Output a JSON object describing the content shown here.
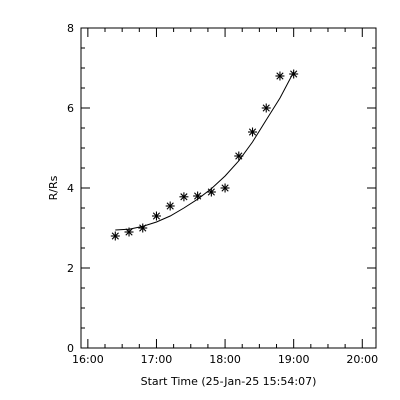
{
  "chart_data": {
    "type": "scatter",
    "title": "",
    "xlabel": "Start Time (25-Jan-25 15:54:07)",
    "ylabel": "R/Rs",
    "x_ticks": [
      "16:00",
      "17:00",
      "18:00",
      "19:00",
      "20:00"
    ],
    "y_ticks": [
      "0",
      "2",
      "4",
      "6",
      "8"
    ],
    "xlim_hours": [
      15.9,
      20.2
    ],
    "ylim": [
      0,
      8
    ],
    "x_minor_ticks_per_major": 4,
    "y_minor_ticks_per_major": 4,
    "grid": false,
    "marker": "asterisk",
    "points": {
      "x_hours": [
        16.4,
        16.6,
        16.8,
        17.0,
        17.2,
        17.4,
        17.6,
        17.8,
        18.0,
        18.2,
        18.4,
        18.6,
        18.8,
        19.0
      ],
      "y": [
        2.8,
        2.9,
        3.0,
        3.3,
        3.55,
        3.78,
        3.8,
        3.9,
        4.0,
        4.8,
        5.4,
        6.0,
        6.8,
        6.85
      ]
    },
    "fit_curve": {
      "x_hours": [
        16.4,
        16.6,
        16.8,
        17.0,
        17.2,
        17.4,
        17.6,
        17.8,
        18.0,
        18.2,
        18.4,
        18.6,
        18.8,
        19.0
      ],
      "y": [
        2.95,
        2.97,
        3.04,
        3.15,
        3.3,
        3.5,
        3.72,
        3.98,
        4.3,
        4.68,
        5.15,
        5.7,
        6.25,
        6.9
      ]
    },
    "colors": {
      "axis": "#000000",
      "marker": "#000000",
      "line": "#000000",
      "background": "#ffffff"
    }
  }
}
